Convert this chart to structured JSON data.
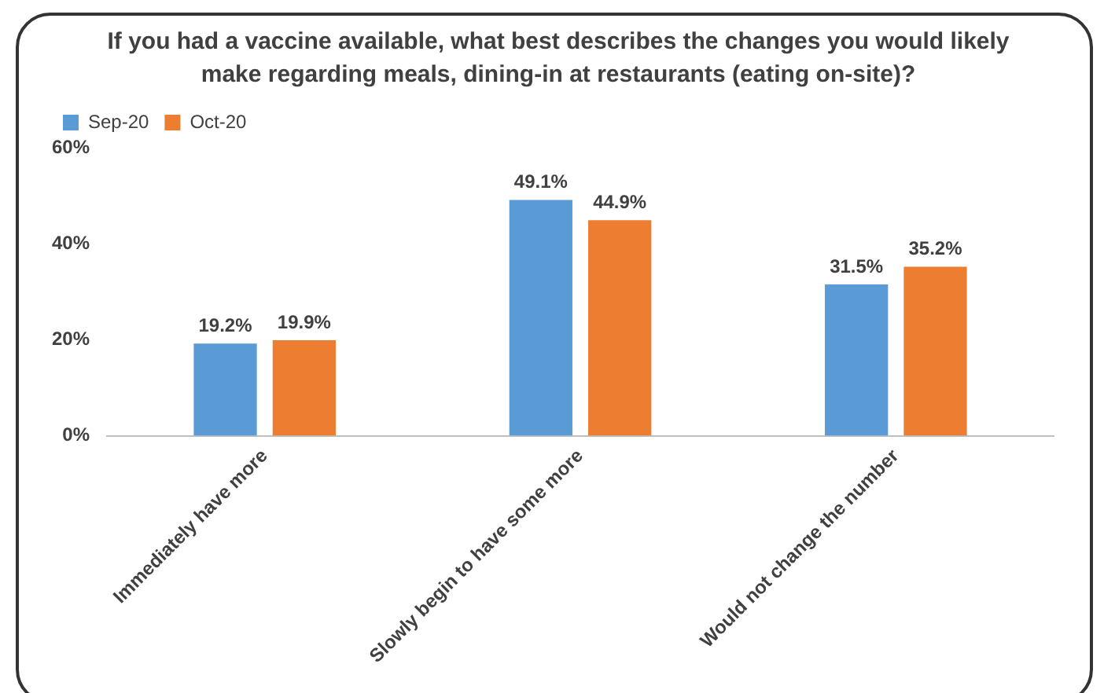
{
  "chart_data": {
    "type": "bar",
    "title": "If you had a vaccine available, what best describes the changes you would likely make regarding meals, dining-in at restaurants (eating on-site)?",
    "categories": [
      "Immediately have more",
      "Slowly begin to have some more",
      "Would not change the number"
    ],
    "series": [
      {
        "name": "Sep-20",
        "color": "#5b9bd5",
        "values": [
          19.2,
          49.1,
          31.5
        ],
        "value_labels": [
          "19.2%",
          "49.1%",
          "31.5%"
        ]
      },
      {
        "name": "Oct-20",
        "color": "#ed7d31",
        "values": [
          19.9,
          44.9,
          35.2
        ],
        "value_labels": [
          "19.9%",
          "44.9%",
          "35.2%"
        ]
      }
    ],
    "ylim": [
      0,
      60
    ],
    "yticks": [
      {
        "value": 0,
        "label": "0%"
      },
      {
        "value": 20,
        "label": "20%"
      },
      {
        "value": 40,
        "label": "40%"
      },
      {
        "value": 60,
        "label": "60%"
      }
    ],
    "grid": false,
    "legend": "top left"
  }
}
